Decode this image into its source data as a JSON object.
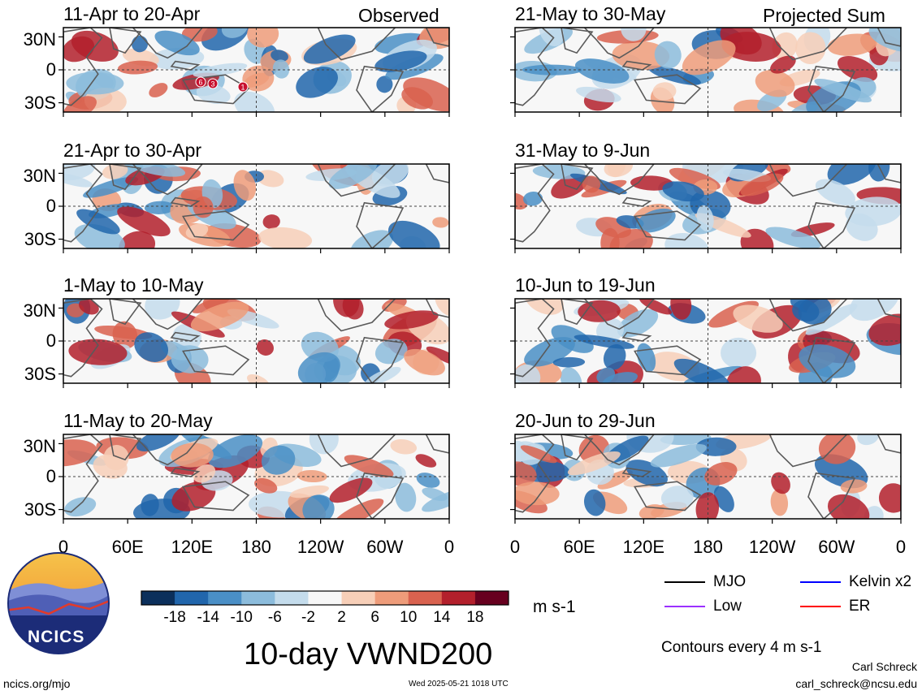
{
  "panels": [
    {
      "title": "11-Apr to 20-Apr",
      "tag": "Observed",
      "col": 0,
      "row": 0
    },
    {
      "title": "21-Apr to 30-Apr",
      "tag": "",
      "col": 0,
      "row": 1
    },
    {
      "title": "1-May to 10-May",
      "tag": "",
      "col": 0,
      "row": 2
    },
    {
      "title": "11-May to 20-May",
      "tag": "",
      "col": 0,
      "row": 3
    },
    {
      "title": "21-May to 30-May",
      "tag": "Projected Sum",
      "col": 1,
      "row": 0
    },
    {
      "title": "31-May to 9-Jun",
      "tag": "",
      "col": 1,
      "row": 1
    },
    {
      "title": "10-Jun to 19-Jun",
      "tag": "",
      "col": 1,
      "row": 2
    },
    {
      "title": "20-Jun to 29-Jun",
      "tag": "",
      "col": 1,
      "row": 3
    }
  ],
  "lat_labels": [
    "30N",
    "0",
    "30S"
  ],
  "lon_labels": [
    "0",
    "60E",
    "120E",
    "180",
    "120W",
    "60W",
    "0"
  ],
  "storm_markers": [
    "6",
    "3",
    "1"
  ],
  "colorbar": {
    "colors": [
      "#0b2f5b",
      "#2166ac",
      "#4a8fc6",
      "#8cbcdc",
      "#c4dcec",
      "#f7f7f7",
      "#f7cfb8",
      "#ee9c7a",
      "#d9624f",
      "#b3202c",
      "#67001f"
    ],
    "labels": [
      "-18",
      "-14",
      "-10",
      "-6",
      "-2",
      "2",
      "6",
      "10",
      "14",
      "18"
    ],
    "units": "m s-1"
  },
  "legend": {
    "items": [
      {
        "label": "MJO",
        "color": "#000000"
      },
      {
        "label": "Kelvin x2",
        "color": "#0000ff"
      },
      {
        "label": "Low",
        "color": "#9b30ff"
      },
      {
        "label": "ER",
        "color": "#ff0000"
      }
    ],
    "contour_note": "Contours every 4 m s-1"
  },
  "main_title": "10-day VWND200",
  "logo_text": "NCICS",
  "footer": {
    "url": "ncics.org/mjo",
    "timestamp": "Wed 2025-05-21 1018 UTC",
    "author": "Carl Schreck",
    "email": "carl_schreck@ncsu.edu"
  }
}
